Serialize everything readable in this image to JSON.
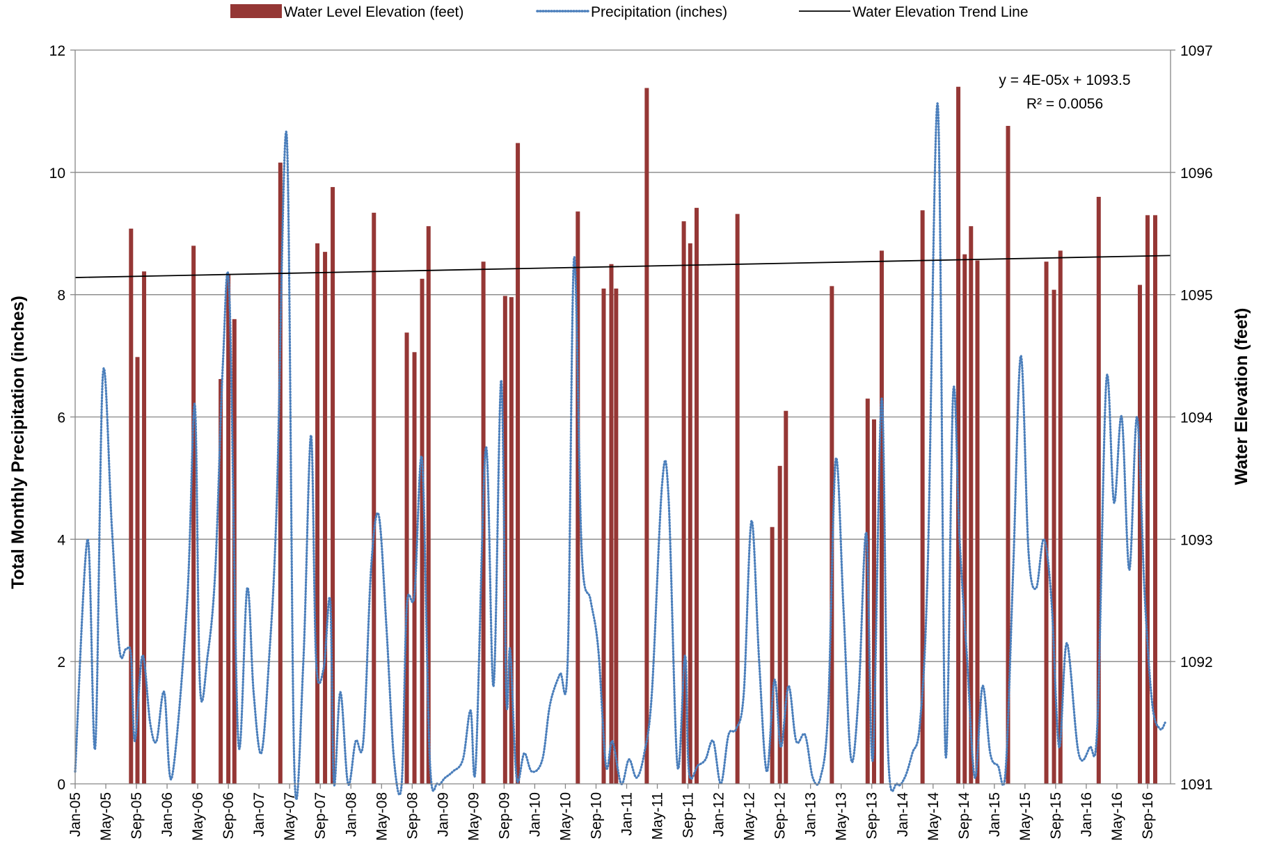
{
  "chart_data": {
    "type": "bar",
    "title": "",
    "legend": {
      "placement": "top",
      "entries": [
        {
          "label": "Water Level Elevation (feet)",
          "symbol": "bar",
          "color": "#953735"
        },
        {
          "label": "Precipitation (inches)",
          "symbol": "dotted-line",
          "color": "#4a7ebb"
        },
        {
          "label": "Water Elevation Trend Line",
          "symbol": "line",
          "color": "#000000"
        }
      ]
    },
    "left_axis": {
      "label": "Total Monthly Precipitation (inches)",
      "range": [
        0,
        12
      ],
      "ticks": [
        "0",
        "2",
        "4",
        "6",
        "8",
        "10",
        "12"
      ]
    },
    "right_axis": {
      "label": "Water Elevation (feet)",
      "range": [
        1091,
        1097
      ],
      "ticks": [
        "1091",
        "1092",
        "1093",
        "1094",
        "1095",
        "1096",
        "1097"
      ]
    },
    "x_axis": {
      "range": [
        "2005-01",
        "2016-12"
      ],
      "tick_labels": [
        "Jan-05",
        "May-05",
        "Sep-05",
        "Jan-06",
        "May-06",
        "Sep-06",
        "Jan-07",
        "May-07",
        "Sep-07",
        "Jan-08",
        "May-08",
        "Sep-08",
        "Jan-09",
        "May-09",
        "Sep-09",
        "Jan-10",
        "May-10",
        "Sep-10",
        "Jan-11",
        "May-11",
        "Sep-11",
        "Jan-12",
        "May-12",
        "Sep-12",
        "Jan-13",
        "May-13",
        "Sep-13",
        "Jan-14",
        "May-14",
        "Sep-14",
        "Jan-15",
        "May-15",
        "Sep-15",
        "Jan-16",
        "May-16",
        "Sep-16"
      ]
    },
    "grid": "horizontal",
    "annotation": {
      "equation": "y = 4E-05x + 1093.5",
      "r_squared": "R² = 0.0056"
    },
    "trend_line": {
      "series": "Water Elevation Trend Line",
      "start": [
        "2005-01",
        1095.14
      ],
      "end": [
        "2016-12",
        1095.32
      ]
    },
    "bar_series": {
      "name": "Water Level Elevation (feet)",
      "points": [
        [
          "2005-08-10",
          1095.54
        ],
        [
          "2005-09-05",
          1094.49
        ],
        [
          "2005-10-01",
          1095.19
        ],
        [
          "2006-04-15",
          1095.4
        ],
        [
          "2006-08-01",
          1094.31
        ],
        [
          "2006-09-01",
          1095.17
        ],
        [
          "2006-09-25",
          1094.8
        ],
        [
          "2007-03-25",
          1096.08
        ],
        [
          "2007-08-20",
          1095.42
        ],
        [
          "2007-09-20",
          1095.35
        ],
        [
          "2007-10-20",
          1095.88
        ],
        [
          "2008-04-01",
          1095.67
        ],
        [
          "2008-08-10",
          1094.69
        ],
        [
          "2008-09-10",
          1094.53
        ],
        [
          "2008-10-10",
          1095.13
        ],
        [
          "2008-11-05",
          1095.56
        ],
        [
          "2009-06-10",
          1095.27
        ],
        [
          "2009-09-05",
          1094.99
        ],
        [
          "2009-09-30",
          1094.98
        ],
        [
          "2009-10-25",
          1096.24
        ],
        [
          "2010-06-20",
          1095.68
        ],
        [
          "2010-10-01",
          1095.05
        ],
        [
          "2010-11-01",
          1095.25
        ],
        [
          "2010-11-20",
          1095.05
        ],
        [
          "2011-03-20",
          1096.69
        ],
        [
          "2011-08-15",
          1095.6
        ],
        [
          "2011-09-10",
          1095.42
        ],
        [
          "2011-10-05",
          1095.71
        ],
        [
          "2012-03-15",
          1095.66
        ],
        [
          "2012-08-01",
          1093.1
        ],
        [
          "2012-09-01",
          1093.6
        ],
        [
          "2012-09-25",
          1094.05
        ],
        [
          "2013-03-25",
          1095.07
        ],
        [
          "2013-08-15",
          1094.15
        ],
        [
          "2013-09-10",
          1093.98
        ],
        [
          "2013-10-10",
          1095.36
        ],
        [
          "2014-03-20",
          1095.69
        ],
        [
          "2014-08-10",
          1096.7
        ],
        [
          "2014-09-05",
          1095.33
        ],
        [
          "2014-09-30",
          1095.56
        ],
        [
          "2014-10-25",
          1095.28
        ],
        [
          "2015-02-25",
          1096.38
        ],
        [
          "2015-07-25",
          1095.27
        ],
        [
          "2015-08-25",
          1095.04
        ],
        [
          "2015-09-20",
          1095.36
        ],
        [
          "2016-02-20",
          1095.8
        ],
        [
          "2016-08-01",
          1095.08
        ],
        [
          "2016-09-01",
          1095.65
        ],
        [
          "2016-10-01",
          1095.65
        ]
      ]
    },
    "line_series": {
      "name": "Precipitation (inches)",
      "points": [
        [
          "2005-01-01",
          0.2
        ],
        [
          "2005-02-20",
          4.0
        ],
        [
          "2005-03-20",
          0.6
        ],
        [
          "2005-04-20",
          6.7
        ],
        [
          "2005-05-25",
          4.2
        ],
        [
          "2005-06-25",
          2.2
        ],
        [
          "2005-07-20",
          2.2
        ],
        [
          "2005-08-10",
          2.1
        ],
        [
          "2005-08-25",
          0.7
        ],
        [
          "2005-09-25",
          2.1
        ],
        [
          "2005-10-25",
          1.0
        ],
        [
          "2005-11-20",
          0.7
        ],
        [
          "2005-12-20",
          1.5
        ],
        [
          "2006-01-20",
          0.1
        ],
        [
          "2006-03-20",
          3.0
        ],
        [
          "2006-04-20",
          6.2
        ],
        [
          "2006-05-10",
          1.6
        ],
        [
          "2006-06-10",
          2.1
        ],
        [
          "2006-07-10",
          3.5
        ],
        [
          "2006-08-10",
          6.9
        ],
        [
          "2006-09-05",
          8.0
        ],
        [
          "2006-10-10",
          0.7
        ],
        [
          "2006-11-15",
          3.2
        ],
        [
          "2006-12-10",
          1.5
        ],
        [
          "2007-01-10",
          0.5
        ],
        [
          "2007-02-10",
          2.0
        ],
        [
          "2007-03-10",
          4.5
        ],
        [
          "2007-04-20",
          10.6
        ],
        [
          "2007-05-20",
          0.2
        ],
        [
          "2007-06-25",
          2.0
        ],
        [
          "2007-07-25",
          5.7
        ],
        [
          "2007-08-15",
          2.0
        ],
        [
          "2007-09-15",
          1.9
        ],
        [
          "2007-10-10",
          3.0
        ],
        [
          "2007-10-25",
          0.0
        ],
        [
          "2007-11-20",
          1.5
        ],
        [
          "2007-12-20",
          0.0
        ],
        [
          "2008-01-20",
          0.7
        ],
        [
          "2008-02-20",
          0.7
        ],
        [
          "2008-03-20",
          3.5
        ],
        [
          "2008-04-20",
          4.4
        ],
        [
          "2008-05-20",
          2.6
        ],
        [
          "2008-06-20",
          0.4
        ],
        [
          "2008-07-20",
          0.0
        ],
        [
          "2008-08-10",
          2.9
        ],
        [
          "2008-09-10",
          3.1
        ],
        [
          "2008-10-10",
          5.3
        ],
        [
          "2008-11-10",
          0.4
        ],
        [
          "2008-12-10",
          0.0
        ],
        [
          "2009-01-10",
          0.1
        ],
        [
          "2009-02-10",
          0.2
        ],
        [
          "2009-03-20",
          0.4
        ],
        [
          "2009-04-20",
          1.2
        ],
        [
          "2009-05-10",
          0.3
        ],
        [
          "2009-06-20",
          5.5
        ],
        [
          "2009-07-20",
          1.6
        ],
        [
          "2009-08-20",
          6.6
        ],
        [
          "2009-09-10",
          1.4
        ],
        [
          "2009-09-25",
          2.2
        ],
        [
          "2009-10-20",
          0.1
        ],
        [
          "2009-11-20",
          0.5
        ],
        [
          "2009-12-20",
          0.2
        ],
        [
          "2010-02-01",
          0.4
        ],
        [
          "2010-03-01",
          1.3
        ],
        [
          "2010-04-10",
          1.8
        ],
        [
          "2010-05-10",
          2.0
        ],
        [
          "2010-06-05",
          8.6
        ],
        [
          "2010-07-05",
          3.8
        ],
        [
          "2010-08-10",
          3.0
        ],
        [
          "2010-09-10",
          2.2
        ],
        [
          "2010-10-10",
          0.3
        ],
        [
          "2010-11-05",
          0.7
        ],
        [
          "2010-12-10",
          0.0
        ],
        [
          "2011-01-10",
          0.4
        ],
        [
          "2011-02-10",
          0.1
        ],
        [
          "2011-03-10",
          0.5
        ],
        [
          "2011-04-10",
          1.5
        ],
        [
          "2011-05-20",
          4.9
        ],
        [
          "2011-06-15",
          4.7
        ],
        [
          "2011-07-20",
          0.3
        ],
        [
          "2011-08-20",
          2.1
        ],
        [
          "2011-09-05",
          0.2
        ],
        [
          "2011-10-10",
          0.3
        ],
        [
          "2011-11-10",
          0.4
        ],
        [
          "2011-12-10",
          0.7
        ],
        [
          "2012-01-10",
          0.0
        ],
        [
          "2012-02-10",
          0.8
        ],
        [
          "2012-03-10",
          0.9
        ],
        [
          "2012-04-10",
          1.5
        ],
        [
          "2012-05-10",
          4.3
        ],
        [
          "2012-06-10",
          2.0
        ],
        [
          "2012-07-10",
          0.2
        ],
        [
          "2012-08-10",
          1.7
        ],
        [
          "2012-09-05",
          0.6
        ],
        [
          "2012-10-05",
          1.6
        ],
        [
          "2012-11-05",
          0.7
        ],
        [
          "2012-12-10",
          0.8
        ],
        [
          "2013-01-10",
          0.1
        ],
        [
          "2013-02-10",
          0.1
        ],
        [
          "2013-03-10",
          1.2
        ],
        [
          "2013-04-10",
          5.3
        ],
        [
          "2013-05-10",
          2.9
        ],
        [
          "2013-06-10",
          0.4
        ],
        [
          "2013-07-10",
          1.5
        ],
        [
          "2013-08-10",
          4.1
        ],
        [
          "2013-09-05",
          0.4
        ],
        [
          "2013-10-10",
          6.3
        ],
        [
          "2013-11-05",
          0.5
        ],
        [
          "2013-12-10",
          0.0
        ],
        [
          "2014-01-10",
          0.1
        ],
        [
          "2014-02-10",
          0.5
        ],
        [
          "2014-03-10",
          1.0
        ],
        [
          "2014-04-10",
          3.5
        ],
        [
          "2014-05-20",
          11.1
        ],
        [
          "2014-06-20",
          0.5
        ],
        [
          "2014-07-20",
          6.4
        ],
        [
          "2014-08-15",
          4.0
        ],
        [
          "2014-09-15",
          2.0
        ],
        [
          "2014-10-15",
          0.1
        ],
        [
          "2014-11-15",
          1.6
        ],
        [
          "2014-12-15",
          0.5
        ],
        [
          "2015-01-15",
          0.3
        ],
        [
          "2015-02-15",
          0.2
        ],
        [
          "2015-03-15",
          3.5
        ],
        [
          "2015-04-15",
          7.0
        ],
        [
          "2015-05-15",
          3.8
        ],
        [
          "2015-06-15",
          3.2
        ],
        [
          "2015-07-15",
          4.0
        ],
        [
          "2015-08-15",
          3.0
        ],
        [
          "2015-09-15",
          0.6
        ],
        [
          "2015-10-15",
          2.3
        ],
        [
          "2015-12-01",
          0.5
        ],
        [
          "2016-01-15",
          0.6
        ],
        [
          "2016-02-15",
          1.0
        ],
        [
          "2016-03-20",
          6.6
        ],
        [
          "2016-04-20",
          4.6
        ],
        [
          "2016-05-20",
          6.0
        ],
        [
          "2016-06-20",
          3.5
        ],
        [
          "2016-07-20",
          6.0
        ],
        [
          "2016-08-20",
          3.1
        ],
        [
          "2016-09-20",
          1.3
        ],
        [
          "2016-10-20",
          0.9
        ],
        [
          "2016-11-10",
          1.0
        ]
      ]
    }
  }
}
